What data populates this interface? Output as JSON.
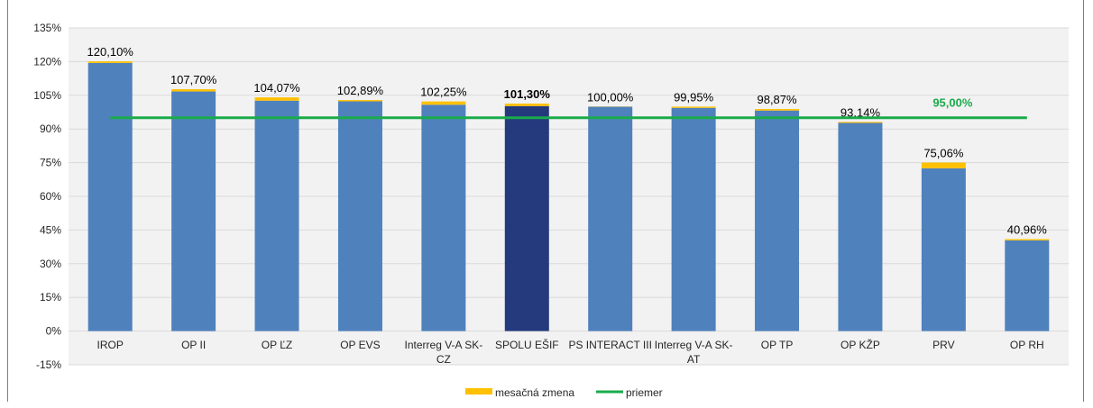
{
  "colors": {
    "bar": "#4f81bd",
    "bar_highlight": "#253a7d",
    "change": "#ffc000",
    "average": "#1aab4b",
    "average_label": "#1aab4b",
    "plot_bg": "#f2f2f2",
    "grid": "#d9d9d9"
  },
  "chart_data": {
    "type": "bar",
    "categories": [
      "IROP",
      "OP II",
      "OP ĽZ",
      "OP EVS",
      "Interreg V-A SK-CZ",
      "SPOLU EŠIF",
      "PS INTERACT III",
      "Interreg V-A SK-AT",
      "OP TP",
      "OP KŽP",
      "PRV",
      "OP RH"
    ],
    "category_lines": [
      [
        "IROP"
      ],
      [
        "OP II"
      ],
      [
        "OP ĽZ"
      ],
      [
        "OP EVS"
      ],
      [
        "Interreg V-A SK-",
        "CZ"
      ],
      [
        "SPOLU EŠIF"
      ],
      [
        "PS INTERACT III"
      ],
      [
        "Interreg V-A SK-",
        "AT"
      ],
      [
        "OP TP"
      ],
      [
        "OP KŽP"
      ],
      [
        "PRV"
      ],
      [
        "OP RH"
      ]
    ],
    "series": [
      {
        "name": "base",
        "values": [
          119.4,
          106.7,
          102.6,
          102.3,
          100.8,
          100.2,
          99.9,
          99.4,
          98.2,
          92.7,
          72.5,
          40.4
        ]
      },
      {
        "name": "mesačná zmena",
        "values": [
          0.7,
          1.0,
          1.47,
          0.59,
          1.45,
          1.1,
          0.1,
          0.55,
          0.67,
          0.44,
          2.56,
          0.56
        ]
      }
    ],
    "totals_labels": [
      "120,10%",
      "107,70%",
      "104,07%",
      "102,89%",
      "102,25%",
      "101,30%",
      "100,00%",
      "99,95%",
      "98,87%",
      "93,14%",
      "75,06%",
      "40,96%"
    ],
    "highlight_index": 5,
    "average": {
      "name": "priemer",
      "value": 95.0,
      "label": "95,00%"
    },
    "ylim": [
      -15,
      135
    ],
    "yticks": [
      -15,
      0,
      15,
      30,
      45,
      60,
      75,
      90,
      105,
      120,
      135
    ],
    "ytick_labels": [
      "-15%",
      "0%",
      "15%",
      "30%",
      "45%",
      "60%",
      "75%",
      "90%",
      "105%",
      "120%",
      "135%"
    ],
    "grid": true,
    "legend_position": "bottom",
    "legend": [
      {
        "name": "mesačná zmena",
        "kind": "swatch",
        "color_key": "change"
      },
      {
        "name": "priemer",
        "kind": "line",
        "color_key": "average"
      }
    ]
  }
}
